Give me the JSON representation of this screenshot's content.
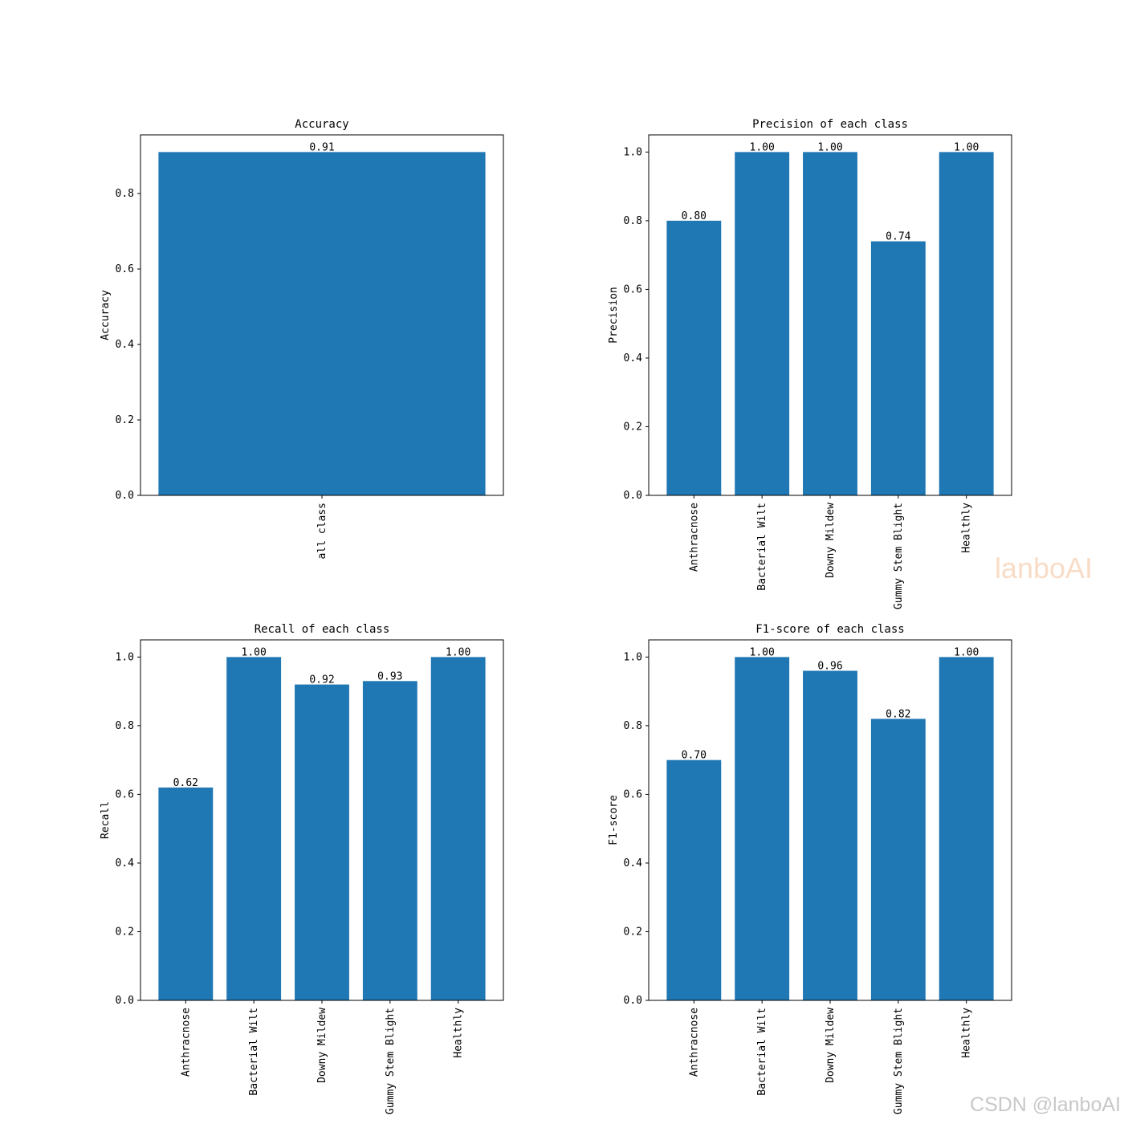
{
  "chart_data": [
    {
      "type": "bar",
      "title": "Accuracy",
      "ylabel": "Accuracy",
      "categories": [
        "all class"
      ],
      "values": [
        0.91
      ],
      "value_labels": [
        "0.91"
      ],
      "color": "#1f77b4",
      "ylim": [
        0,
        0.9555
      ],
      "yticks": [
        {
          "value": 0,
          "label": "0.0"
        },
        0.2,
        0.4,
        0.6,
        0.8
      ]
    },
    {
      "type": "bar",
      "title": "Precision of each class",
      "ylabel": "Precision",
      "categories": [
        "Anthracnose",
        "Bacterial Wilt",
        "Downy Mildew",
        "Gummy Stem Blight",
        "Healthly"
      ],
      "values": [
        0.8,
        1,
        1,
        0.74,
        1
      ],
      "value_labels": [
        "0.80",
        "1.00",
        "1.00",
        "0.74",
        "1.00"
      ],
      "color": "#1f77b4",
      "ylim": [
        0,
        1.05
      ],
      "yticks": [
        {
          "value": 0,
          "label": "0.0"
        },
        0.2,
        0.4,
        0.6,
        0.8,
        {
          "value": 1,
          "label": "1.0"
        }
      ]
    },
    {
      "type": "bar",
      "title": "Recall of each class",
      "ylabel": "Recall",
      "categories": [
        "Anthracnose",
        "Bacterial Wilt",
        "Downy Mildew",
        "Gummy Stem Blight",
        "Healthly"
      ],
      "values": [
        0.62,
        1,
        0.92,
        0.93,
        1
      ],
      "value_labels": [
        "0.62",
        "1.00",
        "0.92",
        "0.93",
        "1.00"
      ],
      "color": "#1f77b4",
      "ylim": [
        0,
        1.05
      ],
      "yticks": [
        {
          "value": 0,
          "label": "0.0"
        },
        0.2,
        0.4,
        0.6,
        0.8,
        {
          "value": 1,
          "label": "1.0"
        }
      ]
    },
    {
      "type": "bar",
      "title": "F1-score of each class",
      "ylabel": "F1-score",
      "categories": [
        "Anthracnose",
        "Bacterial Wilt",
        "Downy Mildew",
        "Gummy Stem Blight",
        "Healthly"
      ],
      "values": [
        0.7,
        1,
        0.96,
        0.82,
        1
      ],
      "value_labels": [
        "0.70",
        "1.00",
        "0.96",
        "0.82",
        "1.00"
      ],
      "color": "#1f77b4",
      "ylim": [
        0,
        1.05
      ],
      "yticks": [
        {
          "value": 0,
          "label": "0.0"
        },
        0.2,
        0.4,
        0.6,
        0.8,
        {
          "value": 1,
          "label": "1.0"
        }
      ]
    }
  ],
  "watermarks": [
    "lanboAI",
    "CSDN @lanboAI"
  ]
}
